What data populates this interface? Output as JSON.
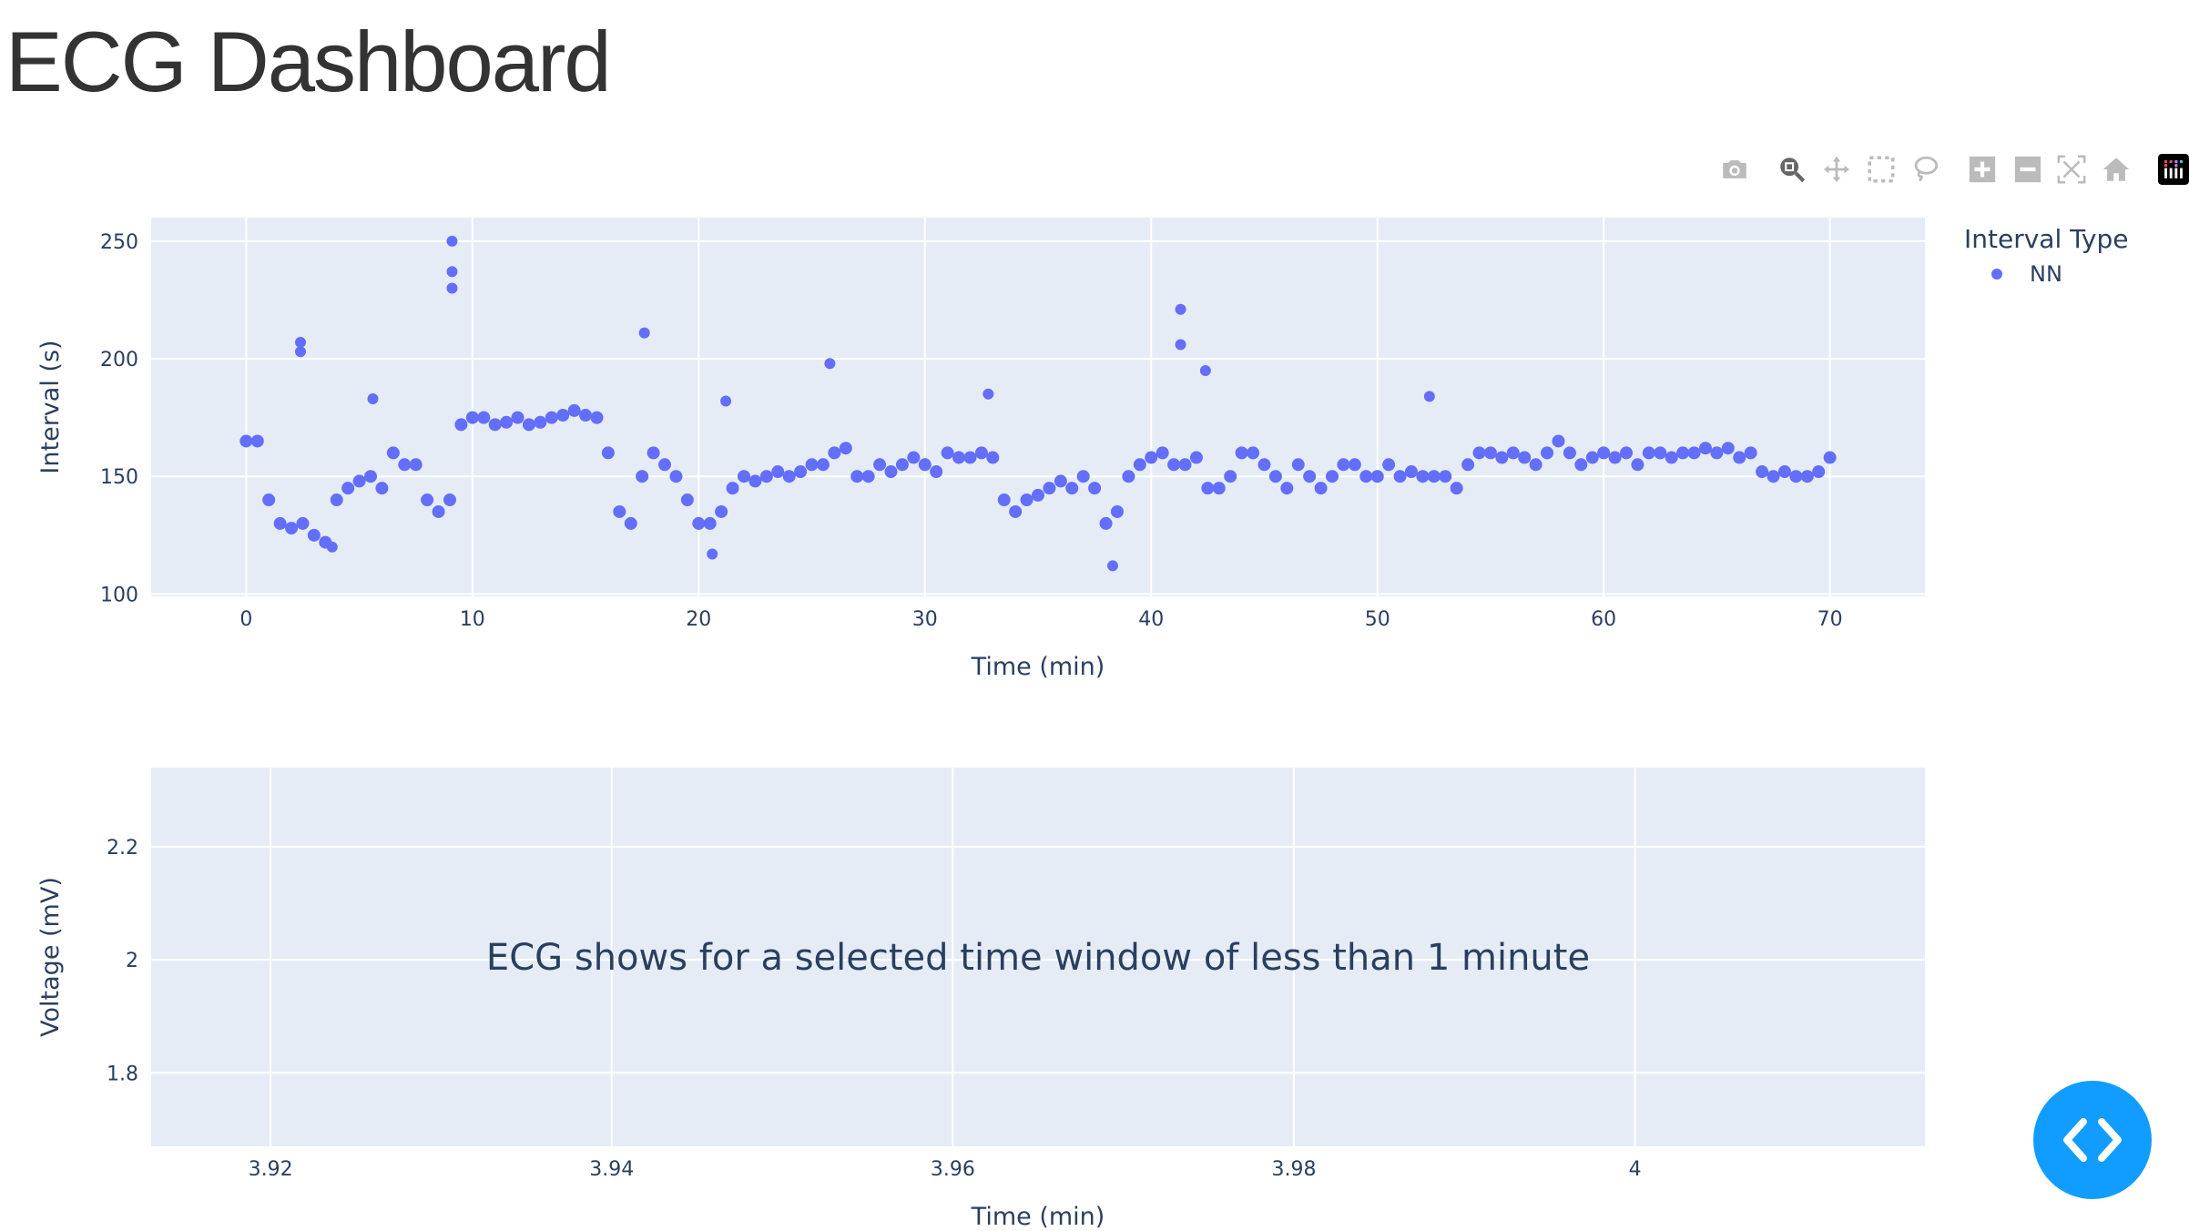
{
  "page": {
    "title": "ECG Dashboard"
  },
  "modebar": [
    {
      "name": "camera-icon",
      "label": "Download plot as a png"
    },
    {
      "name": "zoom-icon",
      "label": "Zoom"
    },
    {
      "name": "pan-icon",
      "label": "Pan"
    },
    {
      "name": "box-select-icon",
      "label": "Box Select"
    },
    {
      "name": "lasso-select-icon",
      "label": "Lasso Select"
    },
    {
      "name": "zoom-in-icon",
      "label": "Zoom in"
    },
    {
      "name": "zoom-out-icon",
      "label": "Zoom out"
    },
    {
      "name": "autoscale-icon",
      "label": "Autoscale"
    },
    {
      "name": "home-icon",
      "label": "Reset axes"
    },
    {
      "name": "plotly-logo-icon",
      "label": "Produced with Plotly"
    }
  ],
  "colors": {
    "marker": "#636efa",
    "plot_bg": "#e5ecf6",
    "fab": "#119dff"
  },
  "chart_data": [
    {
      "type": "scatter",
      "xlabel": "Time (min)",
      "ylabel": "Interval (s)",
      "xlim": [
        -4.2,
        74.2
      ],
      "ylim": [
        99,
        260
      ],
      "xticks": [
        "0",
        "10",
        "20",
        "30",
        "40",
        "50",
        "60",
        "70"
      ],
      "xtick_values": [
        0,
        10,
        20,
        30,
        40,
        50,
        60,
        70
      ],
      "yticks": [
        "100",
        "150",
        "200",
        "250"
      ],
      "ytick_values": [
        100,
        150,
        200,
        250
      ],
      "grid": true,
      "legend": {
        "title": "Interval Type",
        "placement": "top-right",
        "entries": [
          "NN"
        ]
      },
      "series": [
        {
          "name": "NN",
          "x_start": 0,
          "x_step": 0.5,
          "y": [
            165,
            165,
            140,
            130,
            128,
            130,
            125,
            122,
            140,
            145,
            148,
            150,
            145,
            160,
            155,
            155,
            140,
            135,
            140,
            172,
            175,
            175,
            172,
            173,
            175,
            172,
            173,
            175,
            176,
            178,
            176,
            175,
            160,
            135,
            130,
            150,
            160,
            155,
            150,
            140,
            130,
            130,
            135,
            145,
            150,
            148,
            150,
            152,
            150,
            152,
            155,
            155,
            160,
            162,
            150,
            150,
            155,
            152,
            155,
            158,
            155,
            152,
            160,
            158,
            158,
            160,
            158,
            140,
            135,
            140,
            142,
            145,
            148,
            145,
            150,
            145,
            130,
            135,
            150,
            155,
            158,
            160,
            155,
            155,
            158,
            145,
            145,
            150,
            160,
            160,
            155,
            150,
            145,
            155,
            150,
            145,
            150,
            155,
            155,
            150,
            150,
            155,
            150,
            152,
            150,
            150,
            150,
            145,
            155,
            160,
            160,
            158,
            160,
            158,
            155,
            160,
            165,
            160,
            155,
            158,
            160,
            158,
            160,
            155,
            160,
            160,
            158,
            160,
            160,
            162,
            160,
            162,
            158,
            160,
            152,
            150,
            152,
            150,
            150,
            152,
            158
          ],
          "outliers": [
            [
              9.1,
              250
            ],
            [
              9.1,
              237
            ],
            [
              9.1,
              230
            ],
            [
              2.4,
              207
            ],
            [
              2.4,
              203
            ],
            [
              17.6,
              211
            ],
            [
              41.3,
              221
            ],
            [
              41.3,
              206
            ],
            [
              42.4,
              195
            ],
            [
              25.8,
              198
            ],
            [
              52.3,
              184
            ],
            [
              21.2,
              182
            ],
            [
              5.6,
              183
            ],
            [
              32.8,
              185
            ],
            [
              3.8,
              120
            ],
            [
              38.3,
              112
            ],
            [
              20.6,
              117
            ]
          ]
        }
      ]
    },
    {
      "type": "line",
      "xlabel": "Time (min)",
      "ylabel": "Voltage (mV)",
      "xlim": [
        3.913,
        4.017
      ],
      "ylim": [
        1.67,
        2.34
      ],
      "xticks": [
        "3.92",
        "3.94",
        "3.96",
        "3.98",
        "4"
      ],
      "xtick_values": [
        3.92,
        3.94,
        3.96,
        3.98,
        4.0
      ],
      "yticks": [
        "1.8",
        "2",
        "2.2"
      ],
      "ytick_values": [
        1.8,
        2.0,
        2.2
      ],
      "grid": true,
      "annotation": "ECG shows for a selected time window of less than 1 minute",
      "series": []
    }
  ]
}
